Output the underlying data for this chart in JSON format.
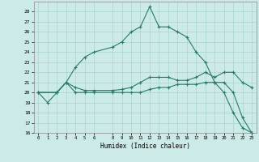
{
  "xlabel": "Humidex (Indice chaleur)",
  "bg_color": "#cceae8",
  "grid_color": "#aad4cc",
  "line_color": "#2a7a6a",
  "xlim": [
    -0.5,
    23.5
  ],
  "ylim": [
    16,
    29
  ],
  "xticks": [
    0,
    1,
    2,
    3,
    4,
    5,
    6,
    8,
    9,
    10,
    11,
    12,
    13,
    14,
    15,
    16,
    17,
    18,
    19,
    20,
    21,
    22,
    23
  ],
  "yticks": [
    16,
    17,
    18,
    19,
    20,
    21,
    22,
    23,
    24,
    25,
    26,
    27,
    28
  ],
  "series1_x": [
    0,
    1,
    2,
    3,
    4,
    5,
    6,
    8,
    9,
    10,
    11,
    12,
    13,
    14,
    15,
    16,
    17,
    18,
    19,
    20,
    21,
    22,
    23
  ],
  "series1_y": [
    20,
    19,
    20,
    21,
    22.5,
    23.5,
    24,
    24.5,
    25,
    26,
    26.5,
    28.5,
    26.5,
    26.5,
    26,
    25.5,
    24,
    23,
    21,
    20,
    18,
    16.5,
    16
  ],
  "series2_x": [
    0,
    2,
    3,
    4,
    5,
    6,
    8,
    9,
    10,
    11,
    12,
    13,
    14,
    15,
    16,
    17,
    18,
    19,
    20,
    21,
    22,
    23
  ],
  "series2_y": [
    20,
    20,
    21,
    20.5,
    20.2,
    20.2,
    20.2,
    20.3,
    20.5,
    21,
    21.5,
    21.5,
    21.5,
    21.2,
    21.2,
    21.5,
    22,
    21.5,
    22,
    22,
    21,
    20.5
  ],
  "series3_x": [
    0,
    2,
    3,
    4,
    5,
    6,
    8,
    9,
    10,
    11,
    12,
    13,
    14,
    15,
    16,
    17,
    18,
    19,
    20,
    21,
    22,
    23
  ],
  "series3_y": [
    20,
    20,
    21,
    20,
    20,
    20,
    20,
    20,
    20,
    20,
    20.3,
    20.5,
    20.5,
    20.8,
    20.8,
    20.8,
    21,
    21,
    21,
    20,
    17.5,
    16
  ]
}
